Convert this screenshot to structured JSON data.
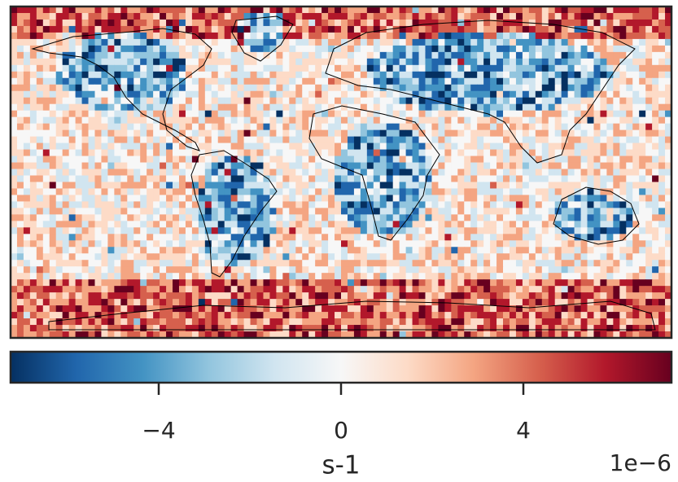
{
  "chart_data": {
    "type": "colorbar-map",
    "cmap": "RdBu_r",
    "clim": [
      -7.25,
      7.25
    ],
    "ticks": [
      {
        "value": -4,
        "label": "−4"
      },
      0,
      4
    ],
    "label": "s-1",
    "offset_label": "1e−6"
  }
}
